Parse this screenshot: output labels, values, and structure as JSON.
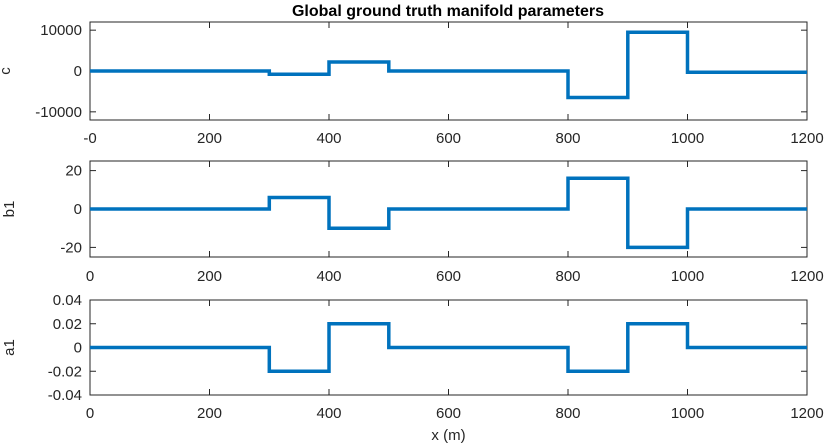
{
  "chart_data": [
    {
      "type": "line",
      "title": "Global ground truth manifold parameters",
      "ylabel": "c",
      "xlabel": "",
      "xlim": [
        0,
        1200
      ],
      "ylim": [
        -12000,
        12000
      ],
      "x_ticks": [
        0,
        200,
        400,
        600,
        800,
        1000,
        1200
      ],
      "x_tick_labels": [
        "-0",
        "200",
        "400",
        "600",
        "800",
        "1000",
        "1200"
      ],
      "y_ticks": [
        10000,
        0,
        -10000
      ],
      "y_tick_labels": [
        "10000",
        "0",
        "-10000"
      ],
      "color": "#0072bd",
      "series": [
        {
          "x": [
            0,
            300,
            300,
            400,
            400,
            500,
            500,
            800,
            800,
            900,
            900,
            1000,
            1000,
            1200
          ],
          "values": [
            0,
            0,
            -800,
            -800,
            2200,
            2200,
            0,
            0,
            -6500,
            -6500,
            9500,
            9500,
            -300,
            -300
          ]
        }
      ]
    },
    {
      "type": "line",
      "ylabel": "b1",
      "xlabel": "",
      "xlim": [
        0,
        1200
      ],
      "ylim": [
        -25,
        25
      ],
      "x_ticks": [
        0,
        200,
        400,
        600,
        800,
        1000,
        1200
      ],
      "x_tick_labels": [
        "0",
        "200",
        "400",
        "600",
        "800",
        "1000",
        "1200"
      ],
      "y_ticks": [
        20,
        0,
        -20
      ],
      "y_tick_labels": [
        "20",
        "0",
        "-20"
      ],
      "color": "#0072bd",
      "series": [
        {
          "x": [
            0,
            300,
            300,
            400,
            400,
            500,
            500,
            800,
            800,
            900,
            900,
            1000,
            1000,
            1200
          ],
          "values": [
            0,
            0,
            6,
            6,
            -10,
            -10,
            0,
            0,
            16,
            16,
            -20,
            -20,
            0,
            0
          ]
        }
      ]
    },
    {
      "type": "line",
      "ylabel": "a1",
      "xlabel": "x (m)",
      "xlim": [
        0,
        1200
      ],
      "ylim": [
        -0.04,
        0.04
      ],
      "x_ticks": [
        0,
        200,
        400,
        600,
        800,
        1000,
        1200
      ],
      "x_tick_labels": [
        "0",
        "200",
        "400",
        "600",
        "800",
        "1000",
        "1200"
      ],
      "y_ticks": [
        0.04,
        0.02,
        0,
        -0.02,
        -0.04
      ],
      "y_tick_labels": [
        "0.04",
        "0.02",
        "0",
        "-0.02",
        "-0.04"
      ],
      "color": "#0072bd",
      "series": [
        {
          "x": [
            0,
            300,
            300,
            400,
            400,
            500,
            500,
            800,
            800,
            900,
            900,
            1000,
            1000,
            1200
          ],
          "values": [
            0,
            0,
            -0.02,
            -0.02,
            0.02,
            0.02,
            0,
            0,
            -0.02,
            -0.02,
            0.02,
            0.02,
            0,
            0
          ]
        }
      ]
    }
  ]
}
